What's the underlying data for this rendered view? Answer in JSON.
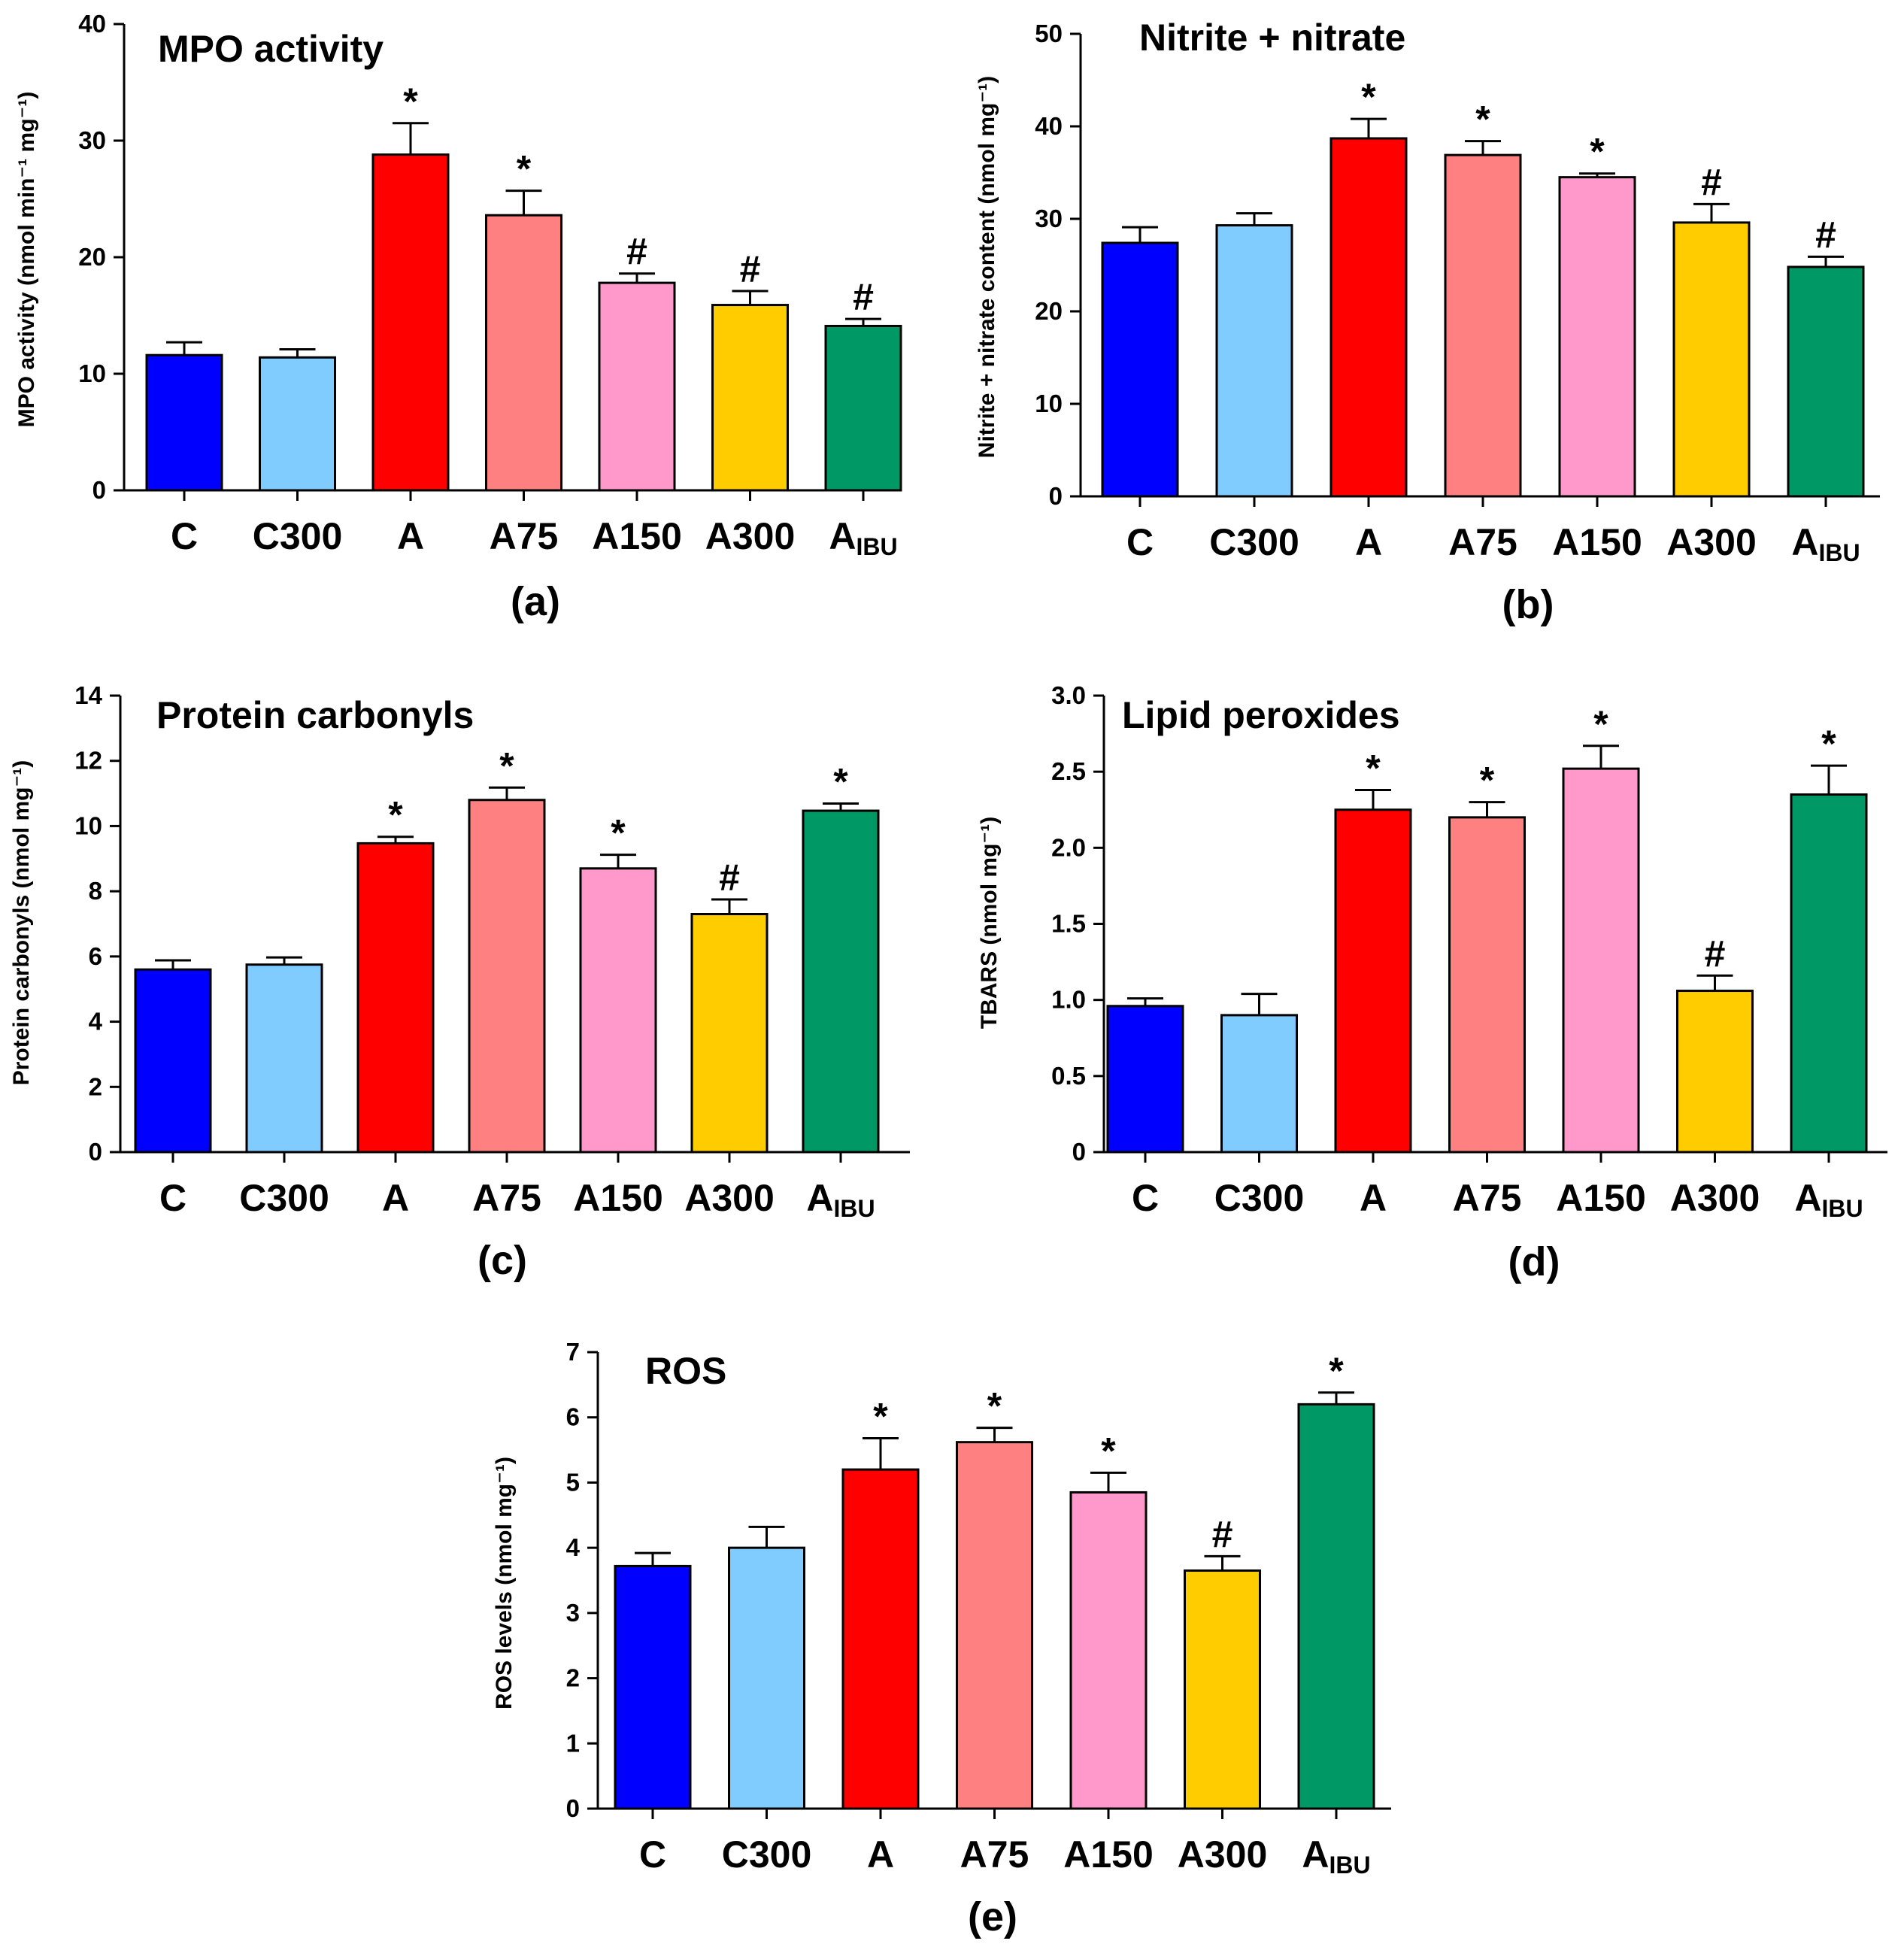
{
  "chart_data": [
    {
      "type": "bar",
      "panel_label": "(a)",
      "title": "MPO activity",
      "ylabel": "MPO activity (nmol min⁻¹ mg⁻¹)",
      "xlabel": "",
      "categories": [
        "C",
        "C300",
        "A",
        "A75",
        "A150",
        "A300",
        "A_IBU"
      ],
      "values": [
        11.6,
        11.4,
        28.8,
        23.6,
        17.8,
        15.9,
        14.1
      ],
      "errors": [
        1.1,
        0.7,
        2.7,
        2.1,
        0.8,
        1.2,
        0.6
      ],
      "significance": [
        "",
        "",
        "*",
        "*",
        "#",
        "#",
        "#"
      ],
      "ylim": [
        0,
        40
      ],
      "yticks": [
        0,
        10,
        20,
        30,
        40
      ],
      "grid": false
    },
    {
      "type": "bar",
      "panel_label": "(b)",
      "title": "Nitrite + nitrate",
      "ylabel": "Nitrite + nitrate content (nmol mg⁻¹)",
      "xlabel": "",
      "categories": [
        "C",
        "C300",
        "A",
        "A75",
        "A150",
        "A300",
        "A_IBU"
      ],
      "values": [
        27.4,
        29.3,
        38.7,
        36.9,
        34.5,
        29.6,
        24.8
      ],
      "errors": [
        1.7,
        1.3,
        2.1,
        1.5,
        0.4,
        2.0,
        1.1
      ],
      "significance": [
        "",
        "",
        "*",
        "*",
        "*",
        "#",
        "#"
      ],
      "ylim": [
        0,
        50
      ],
      "yticks": [
        0,
        10,
        20,
        30,
        40,
        50
      ],
      "grid": false
    },
    {
      "type": "bar",
      "panel_label": "(c)",
      "title": "Protein carbonyls",
      "ylabel": "Protein carbonyls (nmol mg⁻¹)",
      "xlabel": "",
      "categories": [
        "C",
        "C300",
        "A",
        "A75",
        "A150",
        "A300",
        "A_IBU"
      ],
      "values": [
        5.6,
        5.75,
        9.47,
        10.8,
        8.7,
        7.3,
        10.47
      ],
      "errors": [
        0.28,
        0.22,
        0.2,
        0.38,
        0.42,
        0.45,
        0.22
      ],
      "significance": [
        "",
        "",
        "*",
        "*",
        "*",
        "#",
        "*"
      ],
      "ylim": [
        0,
        14
      ],
      "yticks": [
        0,
        2,
        4,
        6,
        8,
        10,
        12,
        14
      ],
      "grid": false
    },
    {
      "type": "bar",
      "panel_label": "(d)",
      "title": "Lipid peroxides",
      "ylabel": "TBARS (nmol mg⁻¹)",
      "xlabel": "",
      "categories": [
        "C",
        "C300",
        "A",
        "A75",
        "A150",
        "A300",
        "A_IBU"
      ],
      "values": [
        0.96,
        0.9,
        2.25,
        2.2,
        2.52,
        1.06,
        2.35
      ],
      "errors": [
        0.05,
        0.14,
        0.13,
        0.1,
        0.15,
        0.1,
        0.19
      ],
      "significance": [
        "",
        "",
        "*",
        "*",
        "*",
        "#",
        "*"
      ],
      "ylim": [
        0,
        3.0
      ],
      "yticks": [
        0,
        0.5,
        1.0,
        1.5,
        2.0,
        2.5,
        3.0
      ],
      "ytick_labels": [
        "0",
        "0.5",
        "1.0",
        "1.5",
        "2.0",
        "2.5",
        "3.0"
      ],
      "grid": false
    },
    {
      "type": "bar",
      "panel_label": "(e)",
      "title": "ROS",
      "ylabel": "ROS levels (nmol mg⁻¹)",
      "xlabel": "",
      "categories": [
        "C",
        "C300",
        "A",
        "A75",
        "A150",
        "A300",
        "A_IBU"
      ],
      "values": [
        3.72,
        4.0,
        5.2,
        5.62,
        4.85,
        3.65,
        6.2
      ],
      "errors": [
        0.2,
        0.32,
        0.48,
        0.22,
        0.3,
        0.22,
        0.18
      ],
      "significance": [
        "",
        "",
        "*",
        "*",
        "*",
        "#",
        "*"
      ],
      "ylim": [
        0,
        7
      ],
      "yticks": [
        0,
        1,
        2,
        3,
        4,
        5,
        6,
        7
      ],
      "grid": false
    }
  ],
  "bar_colors": [
    "#0000ff",
    "#80cbff",
    "#ff0000",
    "#ff8080",
    "#ff99cc",
    "#ffcc00",
    "#009966"
  ]
}
